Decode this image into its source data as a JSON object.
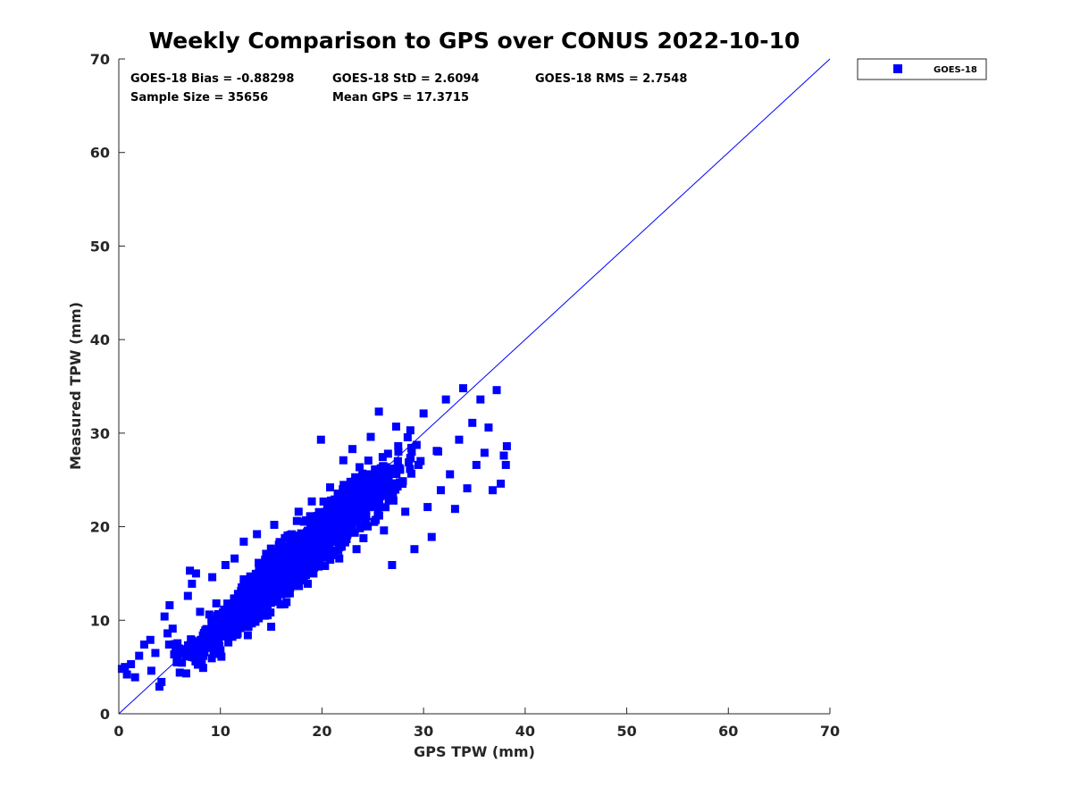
{
  "chart_data": {
    "type": "scatter",
    "title": "Weekly Comparison to GPS over CONUS 2022-10-10",
    "xlabel": "GPS TPW (mm)",
    "ylabel": "Measured TPW (mm)",
    "xlim": [
      0,
      70
    ],
    "ylim": [
      0,
      70
    ],
    "xticks": [
      "0",
      "10",
      "20",
      "30",
      "40",
      "50",
      "60",
      "70"
    ],
    "yticks": [
      "0",
      "10",
      "20",
      "30",
      "40",
      "50",
      "60",
      "70"
    ],
    "grid": false,
    "legend_position": "outside-top-right",
    "color": "#0000ff",
    "reference_line": {
      "from": [
        0,
        0
      ],
      "to": [
        70,
        70
      ]
    },
    "stats": [
      "GOES-18 Bias = -0.88298",
      "GOES-18 StD = 2.6094",
      "GOES-18 RMS = 2.7548",
      "Sample Size = 35656",
      "Mean GPS = 17.3715"
    ],
    "series": [
      {
        "name": "GOES-18",
        "sample_size": 35656,
        "points": [
          [
            0.3,
            4.8
          ],
          [
            0.8,
            4.2
          ],
          [
            1.2,
            5.3
          ],
          [
            0.6,
            5.0
          ],
          [
            1.6,
            3.9
          ],
          [
            2.0,
            6.2
          ],
          [
            2.5,
            7.4
          ],
          [
            3.1,
            7.9
          ],
          [
            3.6,
            6.5
          ],
          [
            3.2,
            4.6
          ],
          [
            4.0,
            2.9
          ],
          [
            4.2,
            3.4
          ],
          [
            4.8,
            8.6
          ],
          [
            4.5,
            10.4
          ],
          [
            5.0,
            11.6
          ],
          [
            5.3,
            9.1
          ],
          [
            5.7,
            5.5
          ],
          [
            6.0,
            4.4
          ],
          [
            6.5,
            6.9
          ],
          [
            6.8,
            12.6
          ],
          [
            7.2,
            13.9
          ],
          [
            7.0,
            15.3
          ],
          [
            7.6,
            15.0
          ],
          [
            8.0,
            10.9
          ],
          [
            8.3,
            4.9
          ],
          [
            8.7,
            8.3
          ],
          [
            9.2,
            14.6
          ],
          [
            9.6,
            11.8
          ],
          [
            10.1,
            6.1
          ],
          [
            10.5,
            15.9
          ],
          [
            11.0,
            9.7
          ],
          [
            11.4,
            16.6
          ],
          [
            11.9,
            12.8
          ],
          [
            12.3,
            18.4
          ],
          [
            12.7,
            8.4
          ],
          [
            13.2,
            14.1
          ],
          [
            13.6,
            19.2
          ],
          [
            14.1,
            12.6
          ],
          [
            14.5,
            17.1
          ],
          [
            15.0,
            9.3
          ],
          [
            15.3,
            20.2
          ],
          [
            15.9,
            15.1
          ],
          [
            16.3,
            11.7
          ],
          [
            16.8,
            18.8
          ],
          [
            17.2,
            14.6
          ],
          [
            17.7,
            21.6
          ],
          [
            18.1,
            16.9
          ],
          [
            18.6,
            13.9
          ],
          [
            19.0,
            22.7
          ],
          [
            19.5,
            18.6
          ],
          [
            19.9,
            29.3
          ],
          [
            20.3,
            15.8
          ],
          [
            20.8,
            24.2
          ],
          [
            21.2,
            19.6
          ],
          [
            21.7,
            16.6
          ],
          [
            22.1,
            27.1
          ],
          [
            22.6,
            21.1
          ],
          [
            23.0,
            28.3
          ],
          [
            23.4,
            17.6
          ],
          [
            23.9,
            25.3
          ],
          [
            24.3,
            20.6
          ],
          [
            24.8,
            29.6
          ],
          [
            25.2,
            22.6
          ],
          [
            25.6,
            32.3
          ],
          [
            26.1,
            19.6
          ],
          [
            26.5,
            27.8
          ],
          [
            26.9,
            15.9
          ],
          [
            27.3,
            30.7
          ],
          [
            27.8,
            24.6
          ],
          [
            28.2,
            21.6
          ],
          [
            28.7,
            30.3
          ],
          [
            29.1,
            17.6
          ],
          [
            29.5,
            26.6
          ],
          [
            30.0,
            32.1
          ],
          [
            30.4,
            22.1
          ],
          [
            30.8,
            18.9
          ],
          [
            31.3,
            28.1
          ],
          [
            31.7,
            23.9
          ],
          [
            32.2,
            33.6
          ],
          [
            32.6,
            25.6
          ],
          [
            33.1,
            21.9
          ],
          [
            33.5,
            29.3
          ],
          [
            33.9,
            34.8
          ],
          [
            34.3,
            24.1
          ],
          [
            34.8,
            31.1
          ],
          [
            35.2,
            26.6
          ],
          [
            35.6,
            33.6
          ],
          [
            36.0,
            27.9
          ],
          [
            36.4,
            30.6
          ],
          [
            36.8,
            23.9
          ],
          [
            37.2,
            34.6
          ],
          [
            37.6,
            24.6
          ],
          [
            37.9,
            27.6
          ],
          [
            38.1,
            26.6
          ],
          [
            38.2,
            28.6
          ]
        ]
      }
    ]
  }
}
